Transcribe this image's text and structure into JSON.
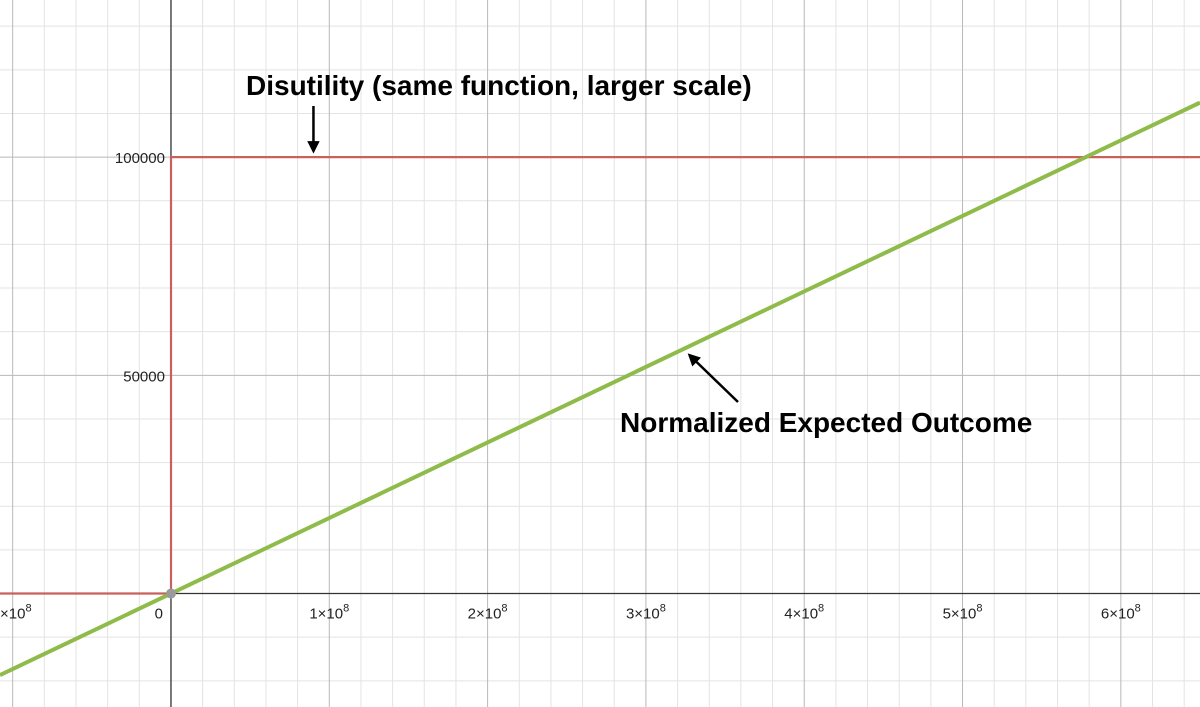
{
  "chart_data": {
    "type": "line",
    "title": "",
    "xlabel": "",
    "ylabel": "",
    "xlim": [
      -108000000.0,
      650000000.0
    ],
    "ylim": [
      -26000,
      136000
    ],
    "grid": true,
    "x_ticks": [
      {
        "value": -100000000.0,
        "label": "×10⁸"
      },
      {
        "value": 100000000.0,
        "label": "1×10⁸"
      },
      {
        "value": 200000000.0,
        "label": "2×10⁸"
      },
      {
        "value": 300000000.0,
        "label": "3×10⁸"
      },
      {
        "value": 400000000.0,
        "label": "4×10⁸"
      },
      {
        "value": 500000000.0,
        "label": "5×10⁸"
      },
      {
        "value": 600000000.0,
        "label": "6×10⁸"
      }
    ],
    "y_ticks": [
      {
        "value": 50000,
        "label": "50000"
      },
      {
        "value": 100000,
        "label": "100000"
      }
    ],
    "origin_label": "0",
    "series": [
      {
        "name": "",
        "color": "#c9605c",
        "kind": "step",
        "points": [
          [
            -108000000.0,
            0
          ],
          [
            0,
            0
          ],
          [
            0,
            100000
          ],
          [
            650000000.0,
            100000
          ]
        ]
      },
      {
        "name": "",
        "color": "#8fbb4a",
        "kind": "line",
        "points": [
          [
            -108000000.0,
            -18700
          ],
          [
            650000000.0,
            112500
          ]
        ]
      }
    ],
    "origin_point": [
      0,
      0
    ],
    "annotations": [
      {
        "text": "Disutility (same function, larger scale)",
        "arrow_to": [
          90000000.0,
          100000
        ]
      },
      {
        "text": "Normalized Expected Outcome",
        "arrow_to": [
          325000000.0,
          56000
        ]
      }
    ]
  }
}
